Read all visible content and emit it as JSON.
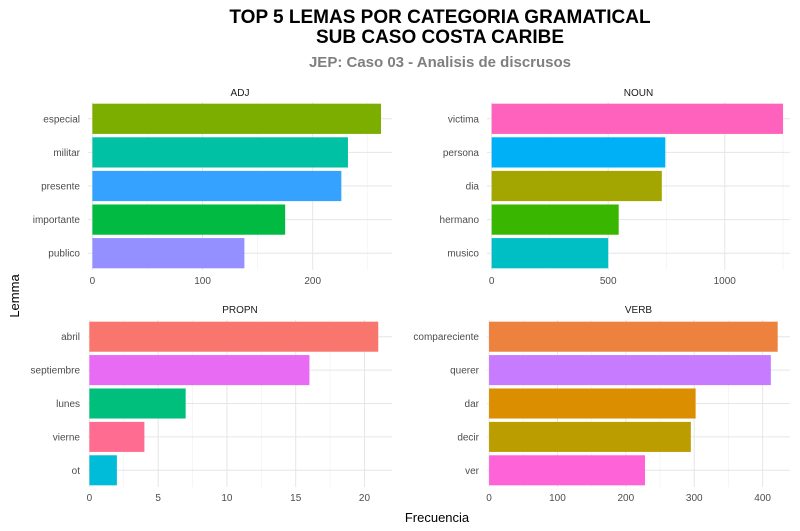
{
  "title_line1": "TOP 5 LEMAS POR CATEGORIA GRAMATICAL",
  "title_line2": "SUB CASO COSTA CARIBE",
  "subtitle": "JEP: Caso 03 - Analisis de discrusos",
  "chart_data": {
    "type": "bar",
    "orientation": "horizontal",
    "xlabel": "Frecuencia",
    "ylabel": "Lemma",
    "grid": true,
    "legend": "none",
    "facets": [
      {
        "name": "ADJ",
        "categories": [
          "especial",
          "militar",
          "presente",
          "importante",
          "publico"
        ],
        "values": [
          262,
          232,
          226,
          175,
          138
        ],
        "colors": [
          "#7CAE00",
          "#00C1A3",
          "#35A2FF",
          "#00BA42",
          "#9590FF"
        ],
        "xticks": [
          0,
          100,
          200
        ],
        "xlim": [
          -4,
          272
        ]
      },
      {
        "name": "NOUN",
        "categories": [
          "victima",
          "persona",
          "dia",
          "hermano",
          "musico"
        ],
        "values": [
          1250,
          745,
          730,
          545,
          500
        ],
        "colors": [
          "#FF62BC",
          "#00B0F6",
          "#A3A500",
          "#39B600",
          "#00BFC4"
        ],
        "xticks": [
          0,
          500,
          1000
        ],
        "xlim": [
          -20,
          1280
        ]
      },
      {
        "name": "PROPN",
        "categories": [
          "abril",
          "septiembre",
          "lunes",
          "vierne",
          "ot"
        ],
        "values": [
          21,
          16,
          7,
          4,
          2
        ],
        "colors": [
          "#F8766D",
          "#E76BF3",
          "#00BF7D",
          "#FF6C91",
          "#00BCD8"
        ],
        "xticks": [
          0,
          5,
          10,
          15,
          20
        ],
        "xlim": [
          -0.1,
          22
        ]
      },
      {
        "name": "VERB",
        "categories": [
          "compareciente",
          "querer",
          "dar",
          "decir",
          "ver"
        ],
        "values": [
          422,
          412,
          302,
          295,
          228
        ],
        "colors": [
          "#ED813E",
          "#C77CFF",
          "#DB8E00",
          "#BB9D00",
          "#FF63D8"
        ],
        "xticks": [
          0,
          100,
          200,
          300,
          400
        ],
        "xlim": [
          -3,
          440
        ]
      }
    ]
  }
}
